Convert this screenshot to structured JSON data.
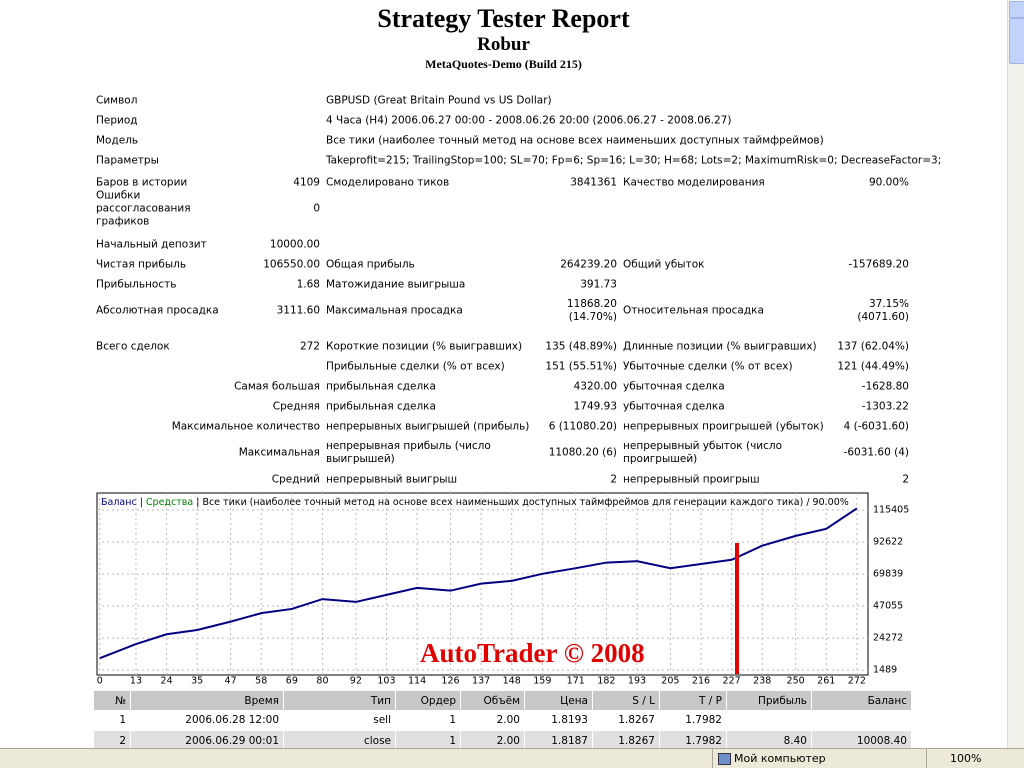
{
  "header": {
    "title": "Strategy Tester Report",
    "subtitle": "Robur",
    "build": "MetaQuotes-Demo (Build 215)"
  },
  "info": [
    {
      "label": "Символ",
      "value": "GBPUSD (Great Britain Pound vs US Dollar)"
    },
    {
      "label": "Период",
      "value": "4 Часа (H4) 2006.06.27 00:00 - 2008.06.26 20:00 (2006.06.27 - 2008.06.27)"
    },
    {
      "label": "Модель",
      "value": "Все тики (наиболее точный метод на основе всех наименьших доступных таймфреймов)"
    },
    {
      "label": "Параметры",
      "value": "Takeprofit=215; TrailingStop=100; SL=70; Fp=6; Sp=16; L=30; H=68; Lots=2; MaximumRisk=0; DecreaseFactor=3;"
    }
  ],
  "stats": [
    [
      "Баров в истории",
      "4109",
      "Смоделировано тиков",
      "3841361",
      "Качество моделирования",
      "90.00%"
    ],
    [
      "Ошибки рассогласования графиков",
      "0",
      null,
      null,
      null,
      null
    ],
    [
      "Начальный депозит",
      "10000.00",
      null,
      null,
      null,
      null
    ],
    [
      "Чистая прибыль",
      "106550.00",
      "Общая прибыль",
      "264239.20",
      "Общий убыток",
      "-157689.20"
    ],
    [
      "Прибыльность",
      "1.68",
      "Матожидание выигрыша",
      "391.73",
      null,
      null
    ],
    [
      "Абсолютная просадка",
      "3111.60",
      "Максимальная просадка",
      "11868.20 (14.70%)",
      "Относительная просадка",
      "37.15% (4071.60)"
    ],
    [
      "Всего сделок",
      "272",
      "Короткие позиции (% выигравших)",
      "135 (48.89%)",
      "Длинные позиции (% выигравших)",
      "137 (62.04%)"
    ],
    [
      null,
      null,
      "Прибыльные сделки (% от всех)",
      "151 (55.51%)",
      "Убыточные сделки (% от всех)",
      "121 (44.49%)"
    ],
    [
      null,
      "Самая большая",
      "прибыльная сделка",
      "4320.00",
      "убыточная сделка",
      "-1628.80"
    ],
    [
      null,
      "Средняя",
      "прибыльная сделка",
      "1749.93",
      "убыточная сделка",
      "-1303.22"
    ],
    [
      null,
      "Максимальное количество",
      "непрерывных выигрышей (прибыль)",
      "6 (11080.20)",
      "непрерывных проигрышей (убыток)",
      "4 (-6031.60)"
    ],
    [
      null,
      "Максимальная",
      "непрерывная прибыль (число выигрышей)",
      "11080.20 (6)",
      "непрерывный убыток (число проигрышей)",
      "-6031.60 (4)"
    ],
    [
      null,
      "Средний",
      "непрерывный выигрыш",
      "2",
      "непрерывный проигрыш",
      "2"
    ]
  ],
  "chart": {
    "type": "line",
    "legend": [
      "Баланс",
      "Средства",
      "Все тики (наиболее точный метод на основе всех наименьших доступных таймфреймов для генерации каждого тика) / 90.00%"
    ],
    "annotation": "AutoTrader © 2008",
    "x": [
      0,
      13,
      24,
      35,
      47,
      58,
      69,
      80,
      92,
      103,
      114,
      126,
      137,
      148,
      159,
      171,
      182,
      193,
      205,
      216,
      227,
      238,
      250,
      261,
      272
    ],
    "values": [
      10000,
      20000,
      27000,
      30000,
      36000,
      42000,
      45000,
      52000,
      50000,
      55000,
      60000,
      58000,
      63000,
      65000,
      70000,
      74000,
      78000,
      79000,
      74000,
      77000,
      80000,
      90000,
      97000,
      102000,
      116550
    ],
    "color": "#000080",
    "xlim": [
      -1,
      276
    ],
    "ylim": [
      -2000,
      127500
    ],
    "xticks": [
      0,
      13,
      24,
      35,
      47,
      58,
      69,
      80,
      92,
      103,
      114,
      126,
      137,
      148,
      159,
      171,
      182,
      193,
      205,
      216,
      227,
      238,
      250,
      261,
      272
    ],
    "yticks": [
      1489,
      24272,
      47055,
      69839,
      92622,
      115405
    ],
    "grid": true
  },
  "trades": {
    "header": [
      "№",
      "Время",
      "Тип",
      "Ордер",
      "Объём",
      "Цена",
      "S / L",
      "T / P",
      "Прибыль",
      "Баланс"
    ],
    "rows": [
      [
        "1",
        "2006.06.28 12:00",
        "sell",
        "1",
        "2.00",
        "1.8193",
        "1.8267",
        "1.7982",
        null,
        null
      ],
      [
        "2",
        "2006.06.29 00:01",
        "close",
        "1",
        "2.00",
        "1.8187",
        "1.8267",
        "1.7982",
        "8.40",
        "10008.40"
      ]
    ]
  },
  "status": {
    "zone": "Мой компьютер",
    "zoom": "100%"
  }
}
